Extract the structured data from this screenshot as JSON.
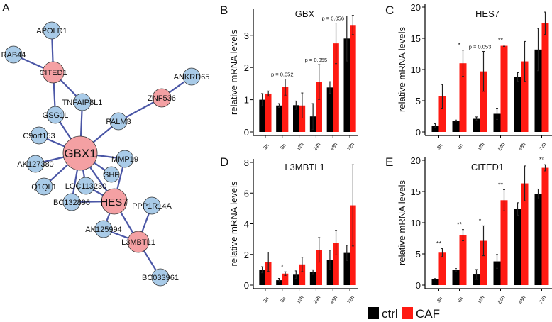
{
  "panel_labels": {
    "a": "A",
    "b": "B",
    "c": "C",
    "d": "D",
    "e": "E"
  },
  "network": {
    "nodes": [
      {
        "id": "APOLD1",
        "type": "blue"
      },
      {
        "id": "RAB44",
        "type": "blue"
      },
      {
        "id": "CITED1",
        "type": "red"
      },
      {
        "id": "TNFAIP8L1",
        "type": "blue"
      },
      {
        "id": "GSG1L",
        "type": "blue"
      },
      {
        "id": "ZNF536",
        "type": "red"
      },
      {
        "id": "ANKRD65",
        "type": "blue"
      },
      {
        "id": "PALM3",
        "type": "blue"
      },
      {
        "id": "C9orf153",
        "type": "blue"
      },
      {
        "id": "GBX1",
        "type": "red"
      },
      {
        "id": "AK127380",
        "type": "blue"
      },
      {
        "id": "MMP19",
        "type": "blue"
      },
      {
        "id": "SHF",
        "type": "blue"
      },
      {
        "id": "Q1QL1",
        "type": "blue"
      },
      {
        "id": "LOC113230",
        "type": "blue"
      },
      {
        "id": "BC132896",
        "type": "blue"
      },
      {
        "id": "HES7",
        "type": "red"
      },
      {
        "id": "PPP1R14A",
        "type": "blue"
      },
      {
        "id": "AK125994",
        "type": "blue"
      },
      {
        "id": "L3MBTL1",
        "type": "red"
      },
      {
        "id": "BC033961",
        "type": "blue"
      }
    ],
    "edges": [
      [
        "APOLD1",
        "CITED1"
      ],
      [
        "RAB44",
        "CITED1"
      ],
      [
        "CITED1",
        "GSG1L"
      ],
      [
        "CITED1",
        "TNFAIP8L1"
      ],
      [
        "TNFAIP8L1",
        "GBX1"
      ],
      [
        "GSG1L",
        "GBX1"
      ],
      [
        "ZNF536",
        "ANKRD65"
      ],
      [
        "ZNF536",
        "PALM3"
      ],
      [
        "PALM3",
        "GBX1"
      ],
      [
        "C9orf153",
        "GBX1"
      ],
      [
        "AK127380",
        "GBX1"
      ],
      [
        "MMP19",
        "GBX1"
      ],
      [
        "SHF",
        "GBX1"
      ],
      [
        "Q1QL1",
        "GBX1"
      ],
      [
        "LOC113230",
        "GBX1"
      ],
      [
        "BC132896",
        "GBX1"
      ],
      [
        "HES7",
        "GBX1"
      ],
      [
        "MMP19",
        "HES7"
      ],
      [
        "LOC113230",
        "HES7"
      ],
      [
        "BC132896",
        "HES7"
      ],
      [
        "HES7",
        "AK125994"
      ],
      [
        "HES7",
        "L3MBTL1"
      ],
      [
        "AK125994",
        "L3MBTL1"
      ],
      [
        "PPP1R14A",
        "L3MBTL1"
      ],
      [
        "L3MBTL1",
        "BC033961"
      ]
    ],
    "colors": {
      "blue": "#a9cbe8",
      "red": "#f4a0a3",
      "edge": "#4a56a6"
    }
  },
  "chart_data": [
    {
      "type": "bar",
      "panel": "b",
      "title": "GBX",
      "ylabel": "relative mRNA levels",
      "xlabel": "",
      "categories": [
        "3h",
        "6h",
        "12h",
        "24h",
        "48h",
        "72h"
      ],
      "ylim": [
        0,
        3.7
      ],
      "yticks": [
        0,
        1,
        2,
        3
      ],
      "series": [
        {
          "name": "ctrl",
          "values": [
            1.0,
            0.82,
            0.83,
            0.48,
            1.38,
            2.9
          ],
          "errors": [
            0.19,
            0.06,
            0.13,
            0.4,
            0.18,
            0.7
          ]
        },
        {
          "name": "CAF",
          "values": [
            1.19,
            1.39,
            0.82,
            1.55,
            2.75,
            3.32
          ],
          "errors": [
            0.08,
            0.25,
            0.39,
            0.54,
            0.63,
            0.3
          ]
        }
      ],
      "annotations": [
        {
          "category": "6h",
          "text": "p = 0.052"
        },
        {
          "category": "24h",
          "text": "p = 0.055"
        },
        {
          "category": "48h",
          "text": "p = 0.056"
        }
      ]
    },
    {
      "type": "bar",
      "panel": "c",
      "title": "HES7",
      "ylabel": "relative mRNA levels",
      "xlabel": "",
      "categories": [
        "3h",
        "6h",
        "12h",
        "24h",
        "48h",
        "72h"
      ],
      "ylim": [
        0,
        20
      ],
      "yticks": [
        0,
        5,
        10,
        15,
        20
      ],
      "series": [
        {
          "name": "ctrl",
          "values": [
            1.0,
            1.8,
            2.1,
            2.9,
            8.8,
            13.2
          ],
          "errors": [
            0.3,
            0.1,
            0.3,
            0.9,
            0.7,
            3.4
          ]
        },
        {
          "name": "CAF",
          "values": [
            5.7,
            11.0,
            9.7,
            13.8,
            11.3,
            17.4
          ],
          "errors": [
            1.9,
            2.1,
            3.2,
            0.1,
            3.2,
            1.8
          ]
        }
      ],
      "annotations": [
        {
          "category": "6h",
          "text": "*"
        },
        {
          "category": "12h",
          "text": "p = 0.053"
        },
        {
          "category": "24h",
          "text": "**"
        }
      ]
    },
    {
      "type": "bar",
      "panel": "d",
      "title": "L3MBTL1",
      "ylabel": "relative mRNA levels",
      "xlabel": "",
      "categories": [
        "3h",
        "6h",
        "12h",
        "24h",
        "48h",
        "72h"
      ],
      "ylim": [
        0,
        8
      ],
      "yticks": [
        0,
        2,
        4,
        6,
        8
      ],
      "series": [
        {
          "name": "ctrl",
          "values": [
            1.0,
            0.32,
            0.68,
            0.85,
            1.65,
            2.1
          ],
          "errors": [
            0.2,
            0.12,
            0.25,
            0.15,
            0.63,
            0.5
          ]
        },
        {
          "name": "CAF",
          "values": [
            1.52,
            0.75,
            1.35,
            2.3,
            2.77,
            5.2
          ],
          "errors": [
            0.63,
            0.12,
            0.47,
            0.8,
            0.8,
            2.65
          ]
        }
      ],
      "annotations": [
        {
          "category": "6h",
          "text": "*"
        }
      ]
    },
    {
      "type": "bar",
      "panel": "e",
      "title": "CITED1",
      "ylabel": "relative mRNA levels",
      "xlabel": "",
      "categories": [
        "3h",
        "6h",
        "12h",
        "24h",
        "48h",
        "72h"
      ],
      "ylim": [
        0,
        20
      ],
      "yticks": [
        0,
        5,
        10,
        15,
        20
      ],
      "series": [
        {
          "name": "ctrl",
          "values": [
            1.0,
            2.45,
            1.7,
            3.8,
            12.2,
            14.6
          ],
          "errors": [
            0.05,
            0.2,
            0.8,
            1.1,
            1.0,
            0.8
          ]
        },
        {
          "name": "CAF",
          "values": [
            5.2,
            8.0,
            7.1,
            13.6,
            16.3,
            18.8
          ],
          "errors": [
            0.65,
            0.9,
            2.4,
            1.7,
            2.8,
            0.5
          ]
        }
      ],
      "annotations": [
        {
          "category": "3h",
          "text": "**"
        },
        {
          "category": "6h",
          "text": "**"
        },
        {
          "category": "12h",
          "text": "*"
        },
        {
          "category": "24h",
          "text": "**"
        },
        {
          "category": "72h",
          "text": "**"
        }
      ]
    }
  ],
  "legend": {
    "items": [
      {
        "label": "ctrl",
        "color": "#000000"
      },
      {
        "label": "CAF",
        "color": "#ff1a12"
      }
    ]
  }
}
